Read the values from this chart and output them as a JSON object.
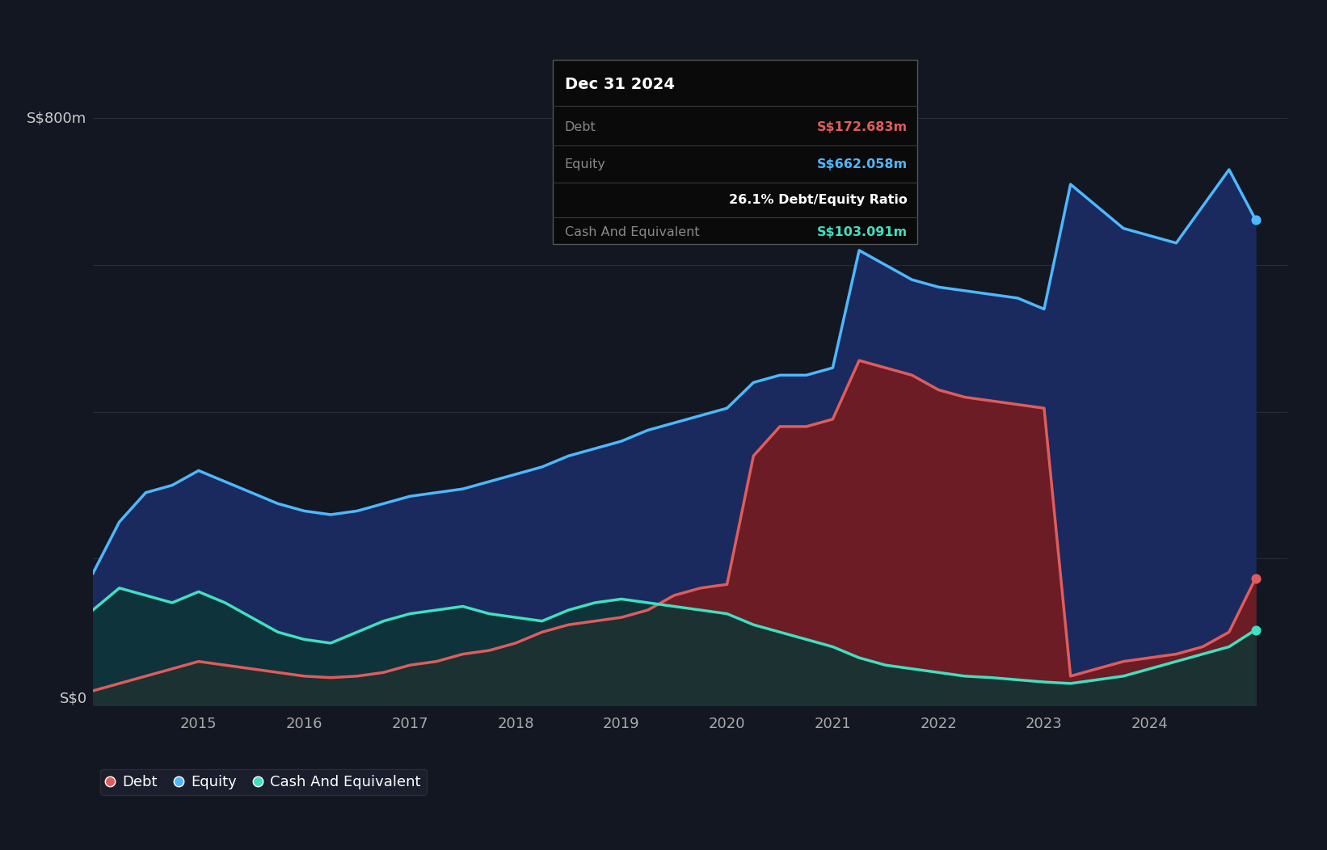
{
  "bg_color": "#131722",
  "plot_bg_color": "#131722",
  "grid_color": "#2a2e39",
  "debt_color": "#e05c5c",
  "equity_color": "#4db8ff",
  "cash_color": "#40e0c0",
  "debt_fill_color": "#7a1a1a",
  "equity_fill_color": "#1a2a5e",
  "cash_fill_color": "#0d3535",
  "tooltip_bg": "#0a0a0a",
  "tooltip_date": "Dec 31 2024",
  "tooltip_debt_label": "Debt",
  "tooltip_debt_value": "S$172.683m",
  "tooltip_equity_label": "Equity",
  "tooltip_equity_value": "S$662.058m",
  "tooltip_ratio": "26.1% Debt/Equity Ratio",
  "tooltip_cash_label": "Cash And Equivalent",
  "tooltip_cash_value": "S$103.091m",
  "legend_items": [
    "Debt",
    "Equity",
    "Cash And Equivalent"
  ],
  "ylabel_800": "S$800m",
  "ylabel_0": "S$0",
  "xmin": 2014.0,
  "xmax": 2025.3,
  "ymin": 0,
  "ymax": 880,
  "years": [
    2014.0,
    2014.25,
    2014.5,
    2014.75,
    2015.0,
    2015.25,
    2015.5,
    2015.75,
    2016.0,
    2016.25,
    2016.5,
    2016.75,
    2017.0,
    2017.25,
    2017.5,
    2017.75,
    2018.0,
    2018.25,
    2018.5,
    2018.75,
    2019.0,
    2019.25,
    2019.5,
    2019.75,
    2020.0,
    2020.25,
    2020.5,
    2020.75,
    2021.0,
    2021.25,
    2021.5,
    2021.75,
    2022.0,
    2022.25,
    2022.5,
    2022.75,
    2023.0,
    2023.25,
    2023.5,
    2023.75,
    2024.0,
    2024.25,
    2024.5,
    2024.75,
    2025.0
  ],
  "equity": [
    180,
    250,
    290,
    300,
    320,
    305,
    290,
    275,
    265,
    260,
    265,
    275,
    285,
    290,
    295,
    305,
    315,
    325,
    340,
    350,
    360,
    375,
    385,
    395,
    405,
    440,
    450,
    450,
    460,
    620,
    600,
    580,
    570,
    565,
    560,
    555,
    540,
    710,
    680,
    650,
    640,
    630,
    680,
    730,
    662
  ],
  "debt": [
    20,
    30,
    40,
    50,
    60,
    55,
    50,
    45,
    40,
    38,
    40,
    45,
    55,
    60,
    70,
    75,
    85,
    100,
    110,
    115,
    120,
    130,
    150,
    160,
    165,
    340,
    380,
    380,
    390,
    470,
    460,
    450,
    430,
    420,
    415,
    410,
    405,
    40,
    50,
    60,
    65,
    70,
    80,
    100,
    173
  ],
  "cash": [
    130,
    160,
    150,
    140,
    155,
    140,
    120,
    100,
    90,
    85,
    100,
    115,
    125,
    130,
    135,
    125,
    120,
    115,
    130,
    140,
    145,
    140,
    135,
    130,
    125,
    110,
    100,
    90,
    80,
    65,
    55,
    50,
    45,
    40,
    38,
    35,
    32,
    30,
    35,
    40,
    50,
    60,
    70,
    80,
    103
  ]
}
